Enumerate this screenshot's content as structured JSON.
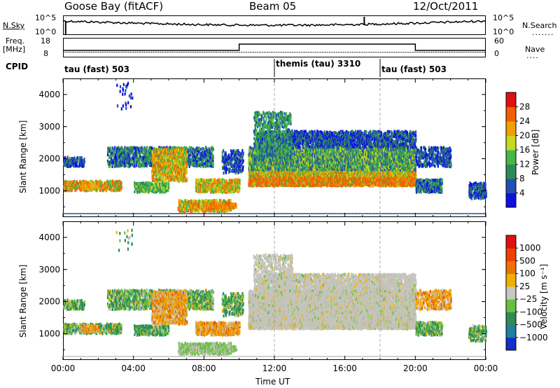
{
  "header": {
    "station": "Goose Bay (fitACF)",
    "beam": "Beam 05",
    "date": "12/Oct/2011"
  },
  "status_panel": {
    "nsky_label": "N.Sky",
    "nsky_ticks": [
      "10^5",
      "10^0"
    ],
    "nsearch_label": "N.Search",
    "nsearch_ticks": [
      "10^5",
      "10^0"
    ],
    "freq_label_1": "Freq.",
    "freq_label_2": "[MHz]",
    "freq_ticks": [
      "18",
      "8"
    ],
    "nave_label": "Nave",
    "nave_ticks": [
      "60",
      "0"
    ],
    "cpid_label": "CPID",
    "cpid_segments": [
      {
        "label": "tau (fast) 503",
        "start_h": 0,
        "end_h": 12
      },
      {
        "label": "themis (tau) 3310",
        "start_h": 12,
        "end_h": 18
      },
      {
        "label": "tau (fast) 503",
        "start_h": 18,
        "end_h": 24
      }
    ],
    "nave_step": {
      "low": 0,
      "high": 45,
      "step_start_h": 10,
      "step_end_h": 20
    }
  },
  "chart_data": [
    {
      "type": "heatmap",
      "title": "",
      "ylabel": "Slant Range [km]",
      "xlabel": "",
      "ylim": [
        180,
        4500
      ],
      "xlim": [
        0,
        24
      ],
      "yticks": [
        "1000",
        "2000",
        "3000",
        "4000"
      ],
      "colorbar": {
        "label": "Power [dB]",
        "ticks": [
          "4",
          "8",
          "12",
          "16",
          "20",
          "24",
          "28"
        ],
        "colors": [
          "#1010e0",
          "#2050b0",
          "#2e8b57",
          "#44b84a",
          "#c8d820",
          "#f0a000",
          "#f06000",
          "#e01010"
        ],
        "range": [
          0,
          30
        ]
      }
    },
    {
      "type": "heatmap",
      "title": "",
      "ylabel": "Slant Range [km]",
      "xlabel": "Time UT",
      "ylim": [
        180,
        4500
      ],
      "xlim": [
        0,
        24
      ],
      "xticks": [
        "00:00",
        "04:00",
        "08:00",
        "12:00",
        "16:00",
        "20:00",
        "00:00"
      ],
      "yticks": [
        "1000",
        "2000",
        "3000",
        "4000"
      ],
      "colorbar": {
        "label": "Velocity [m s⁻¹]",
        "ticks": [
          "1000",
          "500",
          "100",
          "25",
          "−25",
          "−100",
          "−500",
          "−1000"
        ],
        "colors": [
          "#1030c8",
          "#2080a0",
          "#2e8b57",
          "#66c040",
          "#c8c8c0",
          "#f0b000",
          "#f07000",
          "#f04000",
          "#e01010"
        ],
        "range": [
          -1000,
          1000
        ]
      }
    }
  ]
}
